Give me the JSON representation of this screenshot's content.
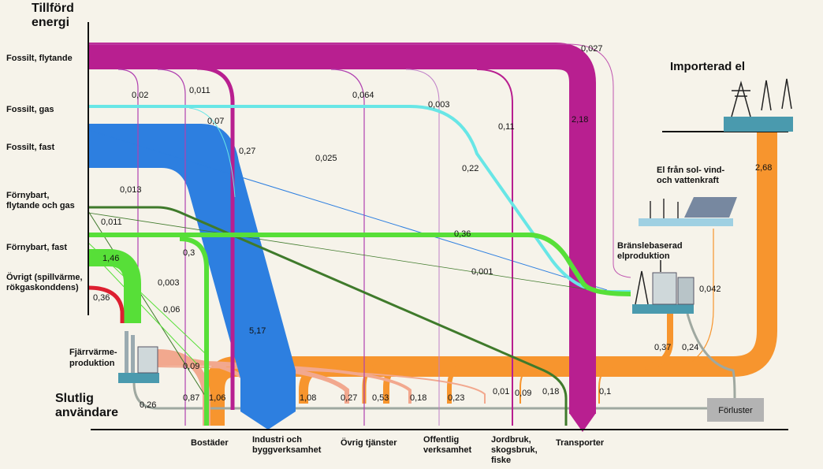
{
  "title": [
    "Tillförd",
    "energi"
  ],
  "sources": [
    [
      "Fossilt, flytande"
    ],
    [
      "Fossilt, gas"
    ],
    [
      "Fossilt, fast"
    ],
    [
      "Förnybart,",
      "flytande och gas"
    ],
    [
      "Förnybart, fast"
    ],
    [
      "Övrigt (spillvärme,",
      "rökgaskonddens)"
    ]
  ],
  "supply": {
    "imported": "Importerad el",
    "renewable_power": [
      "El från sol- vind-",
      "och vattenkraft"
    ],
    "fuel_power": [
      "Bränslebaserad",
      "elproduktion"
    ],
    "district_heating": [
      "Fjärrvärme-",
      "produktion"
    ]
  },
  "end_users_title": [
    "Slutlig",
    "användare"
  ],
  "end_users": [
    [
      "Bostäder"
    ],
    [
      "Industri och",
      "byggverksamhet"
    ],
    [
      "Övrig tjänster"
    ],
    [
      "Offentlig",
      "verksamhet"
    ],
    [
      "Jordbruk,",
      "skogsbruk,",
      "fiske"
    ],
    [
      "Transporter"
    ]
  ],
  "losses": "Förluster",
  "flow_labels": [
    "0,027",
    "0,02",
    "0,011",
    "0,064",
    "0,003",
    "0,11",
    "2,18",
    "0,07",
    "0,27",
    "0,025",
    "0,22",
    "0,013",
    "0,011",
    "0,36",
    "1,46",
    "0,3",
    "0,001",
    "0,003",
    "0,06",
    "5,17",
    "0,36",
    "0,042",
    "2,68",
    "0,37",
    "0,24",
    "0,09",
    "0,87",
    "1,06",
    "1,08",
    "0,27",
    "0,53",
    "0,18",
    "0,23",
    "0,01",
    "0,09",
    "0,18",
    "0,1",
    "0,26"
  ]
}
